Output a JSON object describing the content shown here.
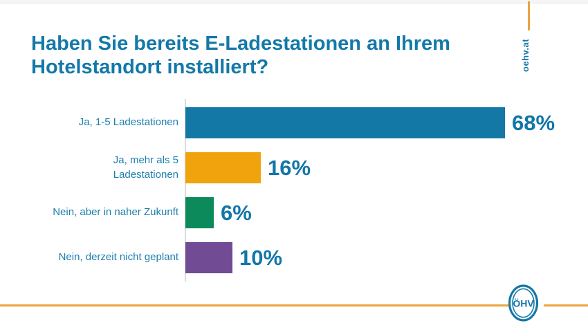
{
  "header": {
    "title": "Haben Sie bereits E-Ladestationen an Ihrem\nHotelstandort installiert?"
  },
  "brand": {
    "site_label": "oehv.at",
    "accent_color": "#e9a43c",
    "primary_color": "#1478a6"
  },
  "chart_data": {
    "type": "bar",
    "orientation": "horizontal",
    "title": "Haben Sie bereits E-Ladestationen an Ihrem Hotelstandort installiert?",
    "categories": [
      "Ja, 1-5 Ladestationen",
      "Ja, mehr als 5 Ladestationen",
      "Nein, aber in naher Zukunft",
      "Nein, derzeit nicht geplant"
    ],
    "categories_display": [
      "Ja, 1-5 Ladestationen",
      "Ja, mehr als 5\nLadestationen",
      "Nein, aber in naher Zukunft",
      "Nein, derzeit nicht geplant"
    ],
    "values": [
      68,
      16,
      6,
      10
    ],
    "value_labels": [
      "68%",
      "16%",
      "6%",
      "10%"
    ],
    "bar_colors": [
      "#1478a6",
      "#f0a30d",
      "#0c8a5c",
      "#714b94"
    ],
    "unit": "%",
    "xlim": [
      0,
      100
    ],
    "grid": false,
    "legend": false
  },
  "footer": {
    "logo_text": "ÖHV"
  }
}
